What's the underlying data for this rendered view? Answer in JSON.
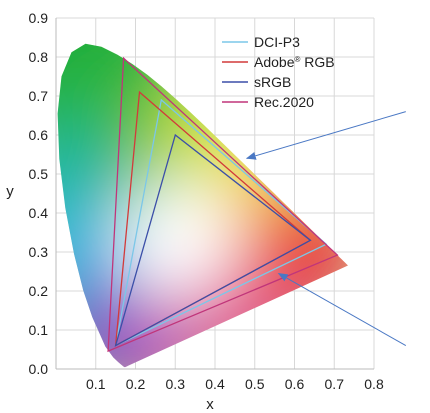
{
  "chart_data": {
    "type": "scatter",
    "title": "",
    "xlabel": "x",
    "ylabel": "y",
    "xlim": [
      0,
      0.8
    ],
    "ylim": [
      0,
      0.9
    ],
    "xticks": [
      "0.1",
      "0.2",
      "0.3",
      "0.4",
      "0.5",
      "0.6",
      "0.7",
      "0.8"
    ],
    "yticks": [
      "0.0",
      "0.1",
      "0.2",
      "0.3",
      "0.4",
      "0.5",
      "0.6",
      "0.7",
      "0.8",
      "0.9"
    ],
    "grid": true,
    "legend_position": "top-right",
    "series": [
      {
        "name": "DCI-P3",
        "color": "#7cc7e8",
        "points": [
          [
            0.68,
            0.32
          ],
          [
            0.265,
            0.69
          ],
          [
            0.15,
            0.06
          ]
        ]
      },
      {
        "name": "Adobe® RGB",
        "color": "#d23a3a",
        "points": [
          [
            0.64,
            0.33
          ],
          [
            0.21,
            0.71
          ],
          [
            0.15,
            0.06
          ]
        ]
      },
      {
        "name": "sRGB",
        "color": "#3b4fa8",
        "points": [
          [
            0.64,
            0.33
          ],
          [
            0.3,
            0.6
          ],
          [
            0.15,
            0.06
          ]
        ]
      },
      {
        "name": "Rec.2020",
        "color": "#c0357a",
        "points": [
          [
            0.708,
            0.292
          ],
          [
            0.17,
            0.797
          ],
          [
            0.131,
            0.046
          ]
        ]
      }
    ],
    "locus": [
      [
        0.1741,
        0.005
      ],
      [
        0.1738,
        0.0049
      ],
      [
        0.1733,
        0.0048
      ],
      [
        0.1726,
        0.0048
      ],
      [
        0.1714,
        0.0051
      ],
      [
        0.1689,
        0.0069
      ],
      [
        0.1644,
        0.0109
      ],
      [
        0.1566,
        0.0177
      ],
      [
        0.144,
        0.0297
      ],
      [
        0.1241,
        0.0578
      ],
      [
        0.0913,
        0.1327
      ],
      [
        0.0687,
        0.2007
      ],
      [
        0.0454,
        0.295
      ],
      [
        0.0235,
        0.4127
      ],
      [
        0.0082,
        0.5384
      ],
      [
        0.0039,
        0.6548
      ],
      [
        0.0139,
        0.7502
      ],
      [
        0.0389,
        0.812
      ],
      [
        0.0743,
        0.8338
      ],
      [
        0.1142,
        0.8262
      ],
      [
        0.1547,
        0.8059
      ],
      [
        0.1929,
        0.7816
      ],
      [
        0.2296,
        0.7543
      ],
      [
        0.2658,
        0.7243
      ],
      [
        0.3016,
        0.6923
      ],
      [
        0.3373,
        0.6589
      ],
      [
        0.3731,
        0.6245
      ],
      [
        0.4087,
        0.5896
      ],
      [
        0.4441,
        0.5547
      ],
      [
        0.4788,
        0.5202
      ],
      [
        0.5125,
        0.4866
      ],
      [
        0.5448,
        0.4544
      ],
      [
        0.5752,
        0.4242
      ],
      [
        0.6029,
        0.3965
      ],
      [
        0.627,
        0.3725
      ],
      [
        0.6482,
        0.3514
      ],
      [
        0.6658,
        0.334
      ],
      [
        0.6801,
        0.3197
      ],
      [
        0.6915,
        0.3083
      ],
      [
        0.7006,
        0.2993
      ],
      [
        0.7079,
        0.292
      ],
      [
        0.714,
        0.2859
      ],
      [
        0.719,
        0.2809
      ],
      [
        0.723,
        0.277
      ],
      [
        0.726,
        0.274
      ],
      [
        0.7283,
        0.2717
      ],
      [
        0.73,
        0.27
      ],
      [
        0.7311,
        0.2689
      ],
      [
        0.732,
        0.268
      ],
      [
        0.7347,
        0.2653
      ]
    ],
    "annotations": [
      {
        "kind": "arrow",
        "from": [
          0.88,
          0.66
        ],
        "to": [
          0.48,
          0.54
        ]
      },
      {
        "kind": "arrow",
        "from": [
          0.88,
          0.06
        ],
        "to": [
          0.56,
          0.245
        ]
      }
    ]
  }
}
